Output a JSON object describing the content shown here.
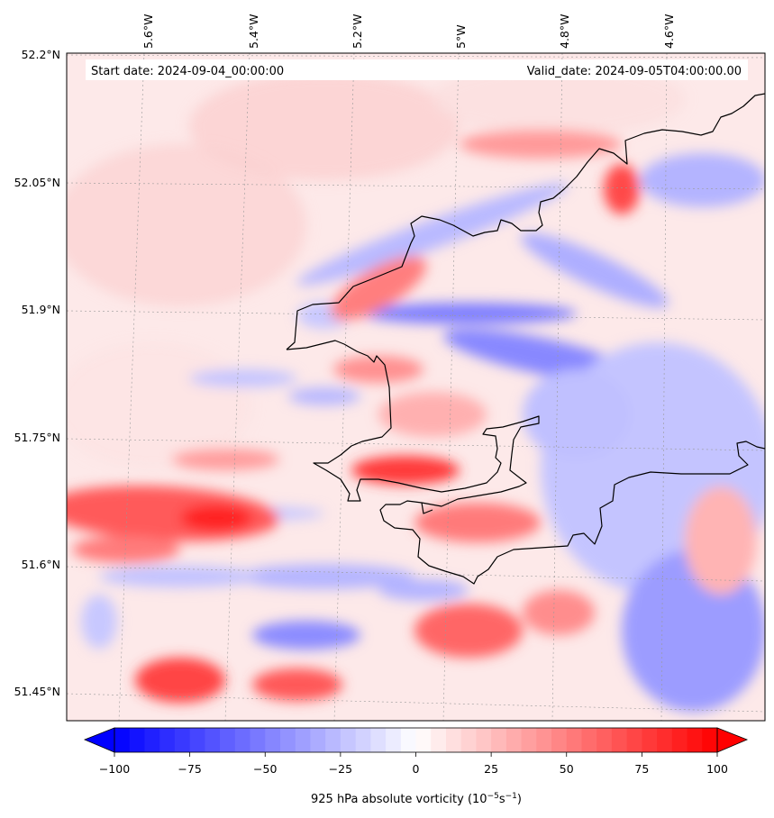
{
  "map": {
    "start_label": "Start date: 2024-09-04_00:00:00",
    "valid_label": "Valid_date: 2024-09-05T04:00:00.00",
    "lon_ticks": [
      "5.6°W",
      "5.4°W",
      "5.2°W",
      "5°W",
      "4.8°W",
      "4.6°W"
    ],
    "lat_ticks": [
      "52.2°N",
      "52.05°N",
      "51.9°N",
      "51.75°N",
      "51.6°N",
      "51.45°N"
    ],
    "field": "925 hPa absolute vorticity",
    "colormap": "bwr",
    "coastline_color": "#000000",
    "gridlines": true
  },
  "colorbar": {
    "title_main": "925 hPa absolute vorticity (10",
    "title_exp1": "−5",
    "title_mid": "s",
    "title_exp2": "−1",
    "title_end": ")",
    "min": -100,
    "max": 100,
    "tick_labels": [
      "−100",
      "−75",
      "−50",
      "−25",
      "0",
      "25",
      "50",
      "75",
      "100"
    ],
    "low_color": "#0000ff",
    "mid_color": "#ffffff",
    "high_color": "#ff0000",
    "extend": "both"
  }
}
